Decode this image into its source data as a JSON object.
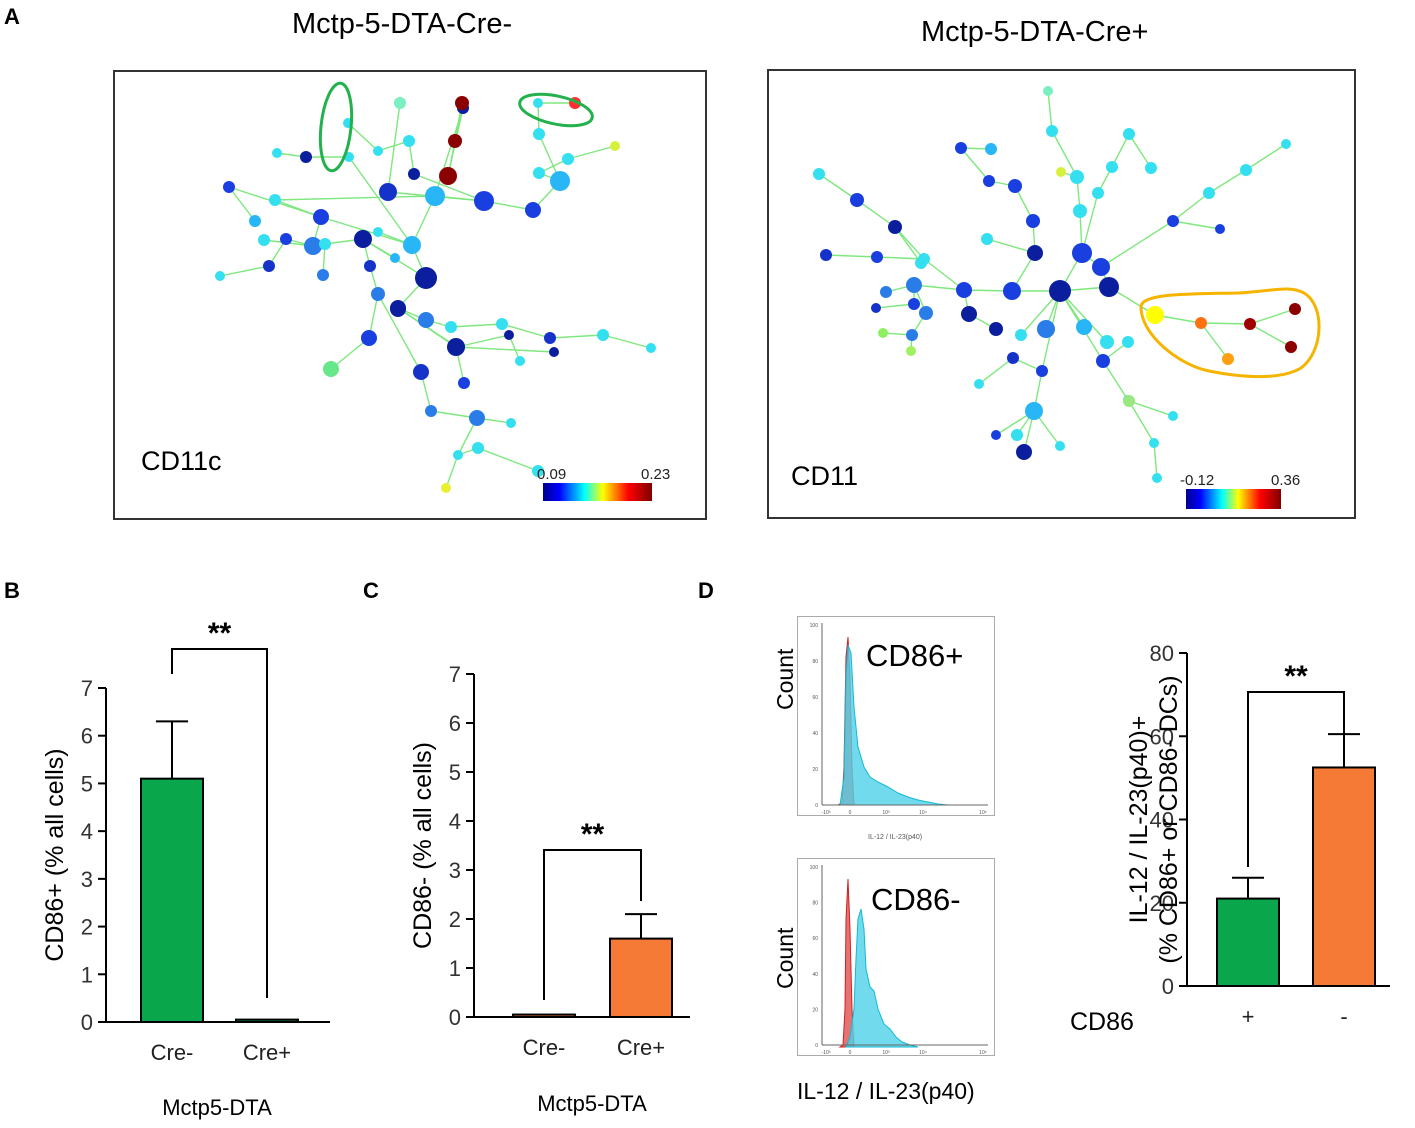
{
  "panels": {
    "A": {
      "letter": "A",
      "left": {
        "title": "Mctp-5-DTA-Cre-",
        "marker": "CD11c",
        "cbar_min": "0.09",
        "cbar_max": "0.23"
      },
      "right": {
        "title": "Mctp-5-DTA-Cre+",
        "marker": "CD11",
        "cbar_min": "-0.12",
        "cbar_max": "0.36"
      }
    },
    "B": {
      "letter": "B"
    },
    "C": {
      "letter": "C"
    },
    "D": {
      "letter": "D",
      "hist_top_label": "CD86+",
      "hist_bottom_label": "CD86-",
      "hist_ylabel": "Count",
      "hist_small_xlabel": "IL-12 / IL-23(p40)",
      "hist_xlabel": "IL-12 / IL-23(p40)",
      "hist_yticks": [
        "100",
        "80",
        "60",
        "40",
        "20",
        "0"
      ],
      "hist_xticks": [
        "-10³",
        "0",
        "10³",
        "10⁴",
        "10⁵"
      ]
    }
  },
  "chart_data": [
    {
      "id": "B",
      "type": "bar",
      "categories": [
        "Cre-",
        "Cre+"
      ],
      "values": [
        5.1,
        0.05
      ],
      "errors": [
        1.2,
        0
      ],
      "colors": [
        "#0aa64b",
        "#0aa64b"
      ],
      "ylabel": "CD86+ (% all cells)",
      "xlabel": "Mctp5-DTA",
      "ylim": [
        0,
        7
      ],
      "yticks": [
        "0",
        "1",
        "2",
        "3",
        "4",
        "5",
        "6",
        "7"
      ],
      "significance": "**"
    },
    {
      "id": "C",
      "type": "bar",
      "categories": [
        "Cre-",
        "Cre+"
      ],
      "values": [
        0.05,
        1.6
      ],
      "errors": [
        0,
        0.5
      ],
      "colors": [
        "#f47a35",
        "#f47a35"
      ],
      "ylabel": "CD86- (% all cells)",
      "xlabel": "Mctp5-DTA",
      "ylim": [
        0,
        7
      ],
      "yticks": [
        "0",
        "1",
        "2",
        "3",
        "4",
        "5",
        "6",
        "7"
      ],
      "significance": "**"
    },
    {
      "id": "D",
      "type": "bar",
      "categories": [
        "+",
        "-"
      ],
      "values": [
        21,
        52.5
      ],
      "errors": [
        5,
        8
      ],
      "colors": [
        "#0aa64b",
        "#f47a35"
      ],
      "ylabel": "IL-12 / IL-23(p40)+",
      "ylabel2": "(% CD86+ or CD86- DCs)",
      "xlabel": "CD86",
      "ylim": [
        0,
        80
      ],
      "yticks": [
        "0",
        "20",
        "40",
        "60",
        "80"
      ],
      "significance": "**"
    }
  ]
}
